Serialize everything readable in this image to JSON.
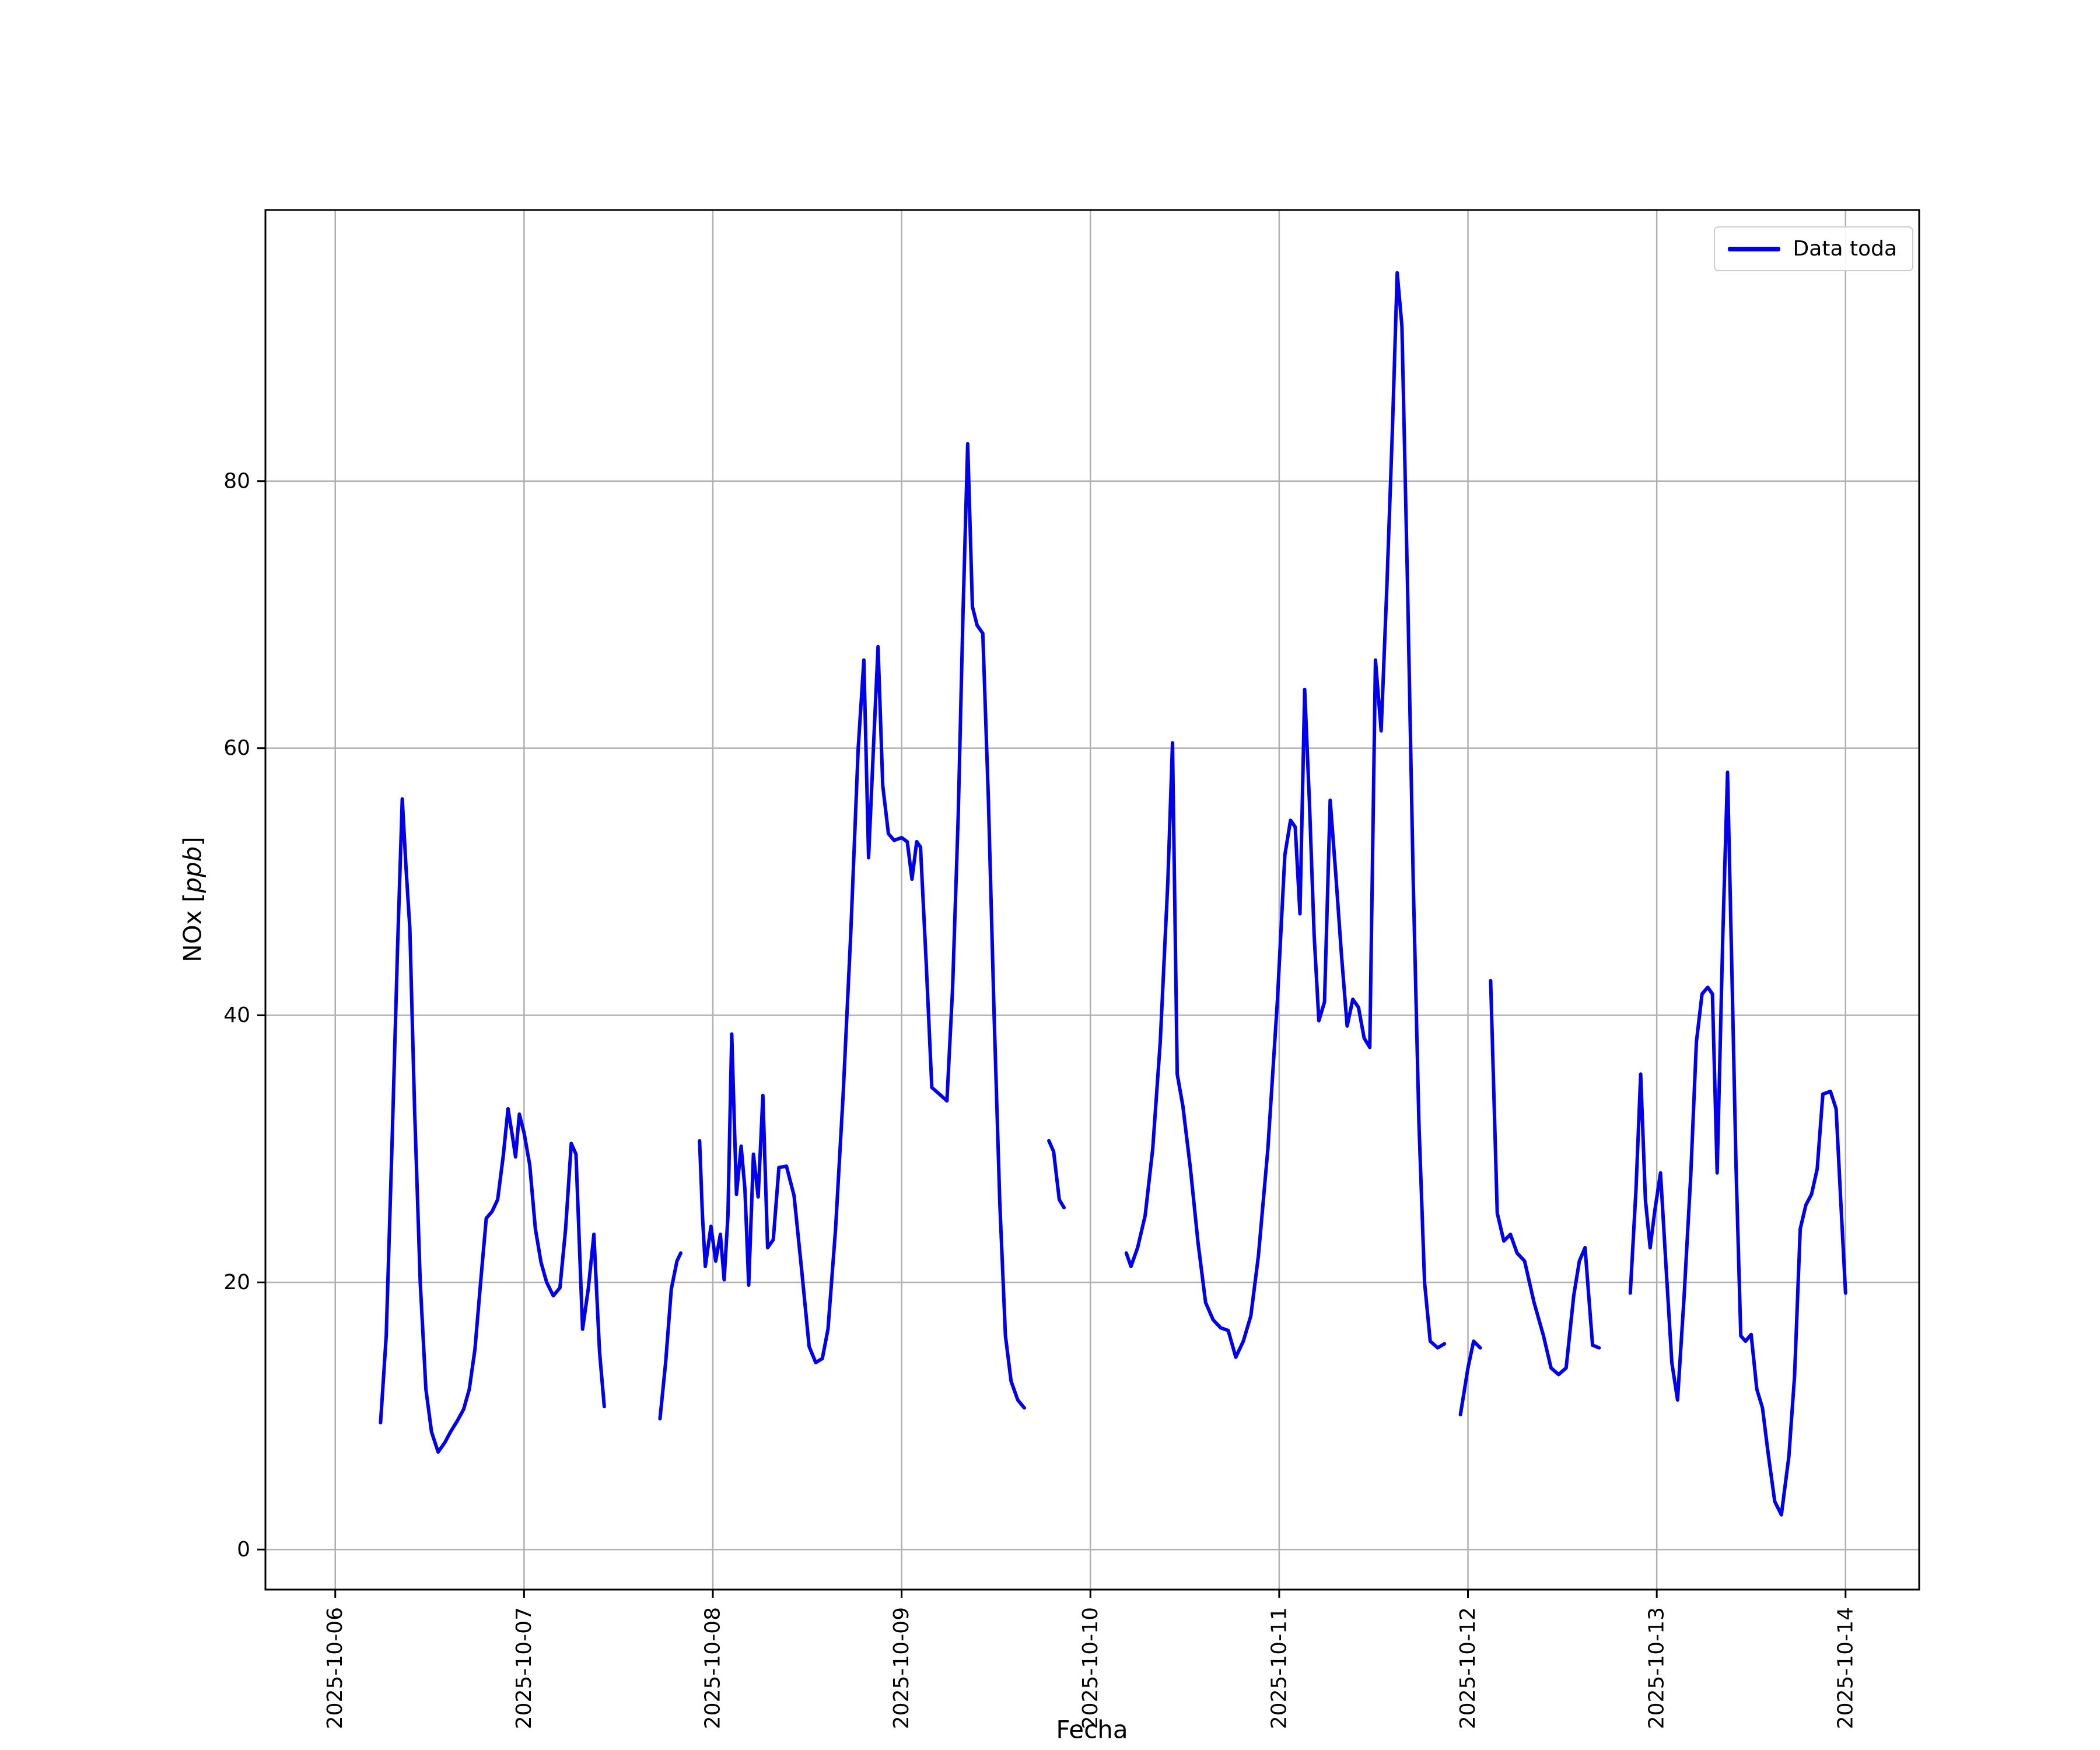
{
  "figure": {
    "background": "#ffffff"
  },
  "chart_data": {
    "type": "line",
    "title": "",
    "xlabel": "Fecha",
    "ylabel": "NOx [ppb]",
    "ylabel_parts": {
      "prefix": "NOx [",
      "italic": "ppb",
      "suffix": "]"
    },
    "legend": {
      "label": "Data toda",
      "position": "upper right"
    },
    "line_color": "#0000ee",
    "grid": true,
    "grid_color": "#b0b0b0",
    "x_unit": "days since 2025-10-06 00:00",
    "xlim": [
      -0.37,
      8.39
    ],
    "ylim": [
      -3,
      100.3
    ],
    "yticks": [
      0,
      20,
      40,
      60,
      80
    ],
    "xticks": [
      {
        "t": 0,
        "label": "2025-10-06"
      },
      {
        "t": 1,
        "label": "2025-10-07"
      },
      {
        "t": 2,
        "label": "2025-10-08"
      },
      {
        "t": 3,
        "label": "2025-10-09"
      },
      {
        "t": 4,
        "label": "2025-10-10"
      },
      {
        "t": 5,
        "label": "2025-10-11"
      },
      {
        "t": 6,
        "label": "2025-10-12"
      },
      {
        "t": 7,
        "label": "2025-10-13"
      },
      {
        "t": 8,
        "label": "2025-10-14"
      }
    ],
    "segments": [
      [
        [
          0.24,
          9.5
        ],
        [
          0.27,
          16
        ],
        [
          0.3,
          30
        ],
        [
          0.33,
          45
        ],
        [
          0.355,
          56.2
        ],
        [
          0.375,
          51
        ],
        [
          0.395,
          46.5
        ],
        [
          0.42,
          33
        ],
        [
          0.45,
          20
        ],
        [
          0.48,
          12
        ],
        [
          0.51,
          8.8
        ],
        [
          0.545,
          7.3
        ],
        [
          0.58,
          8
        ],
        [
          0.61,
          8.8
        ],
        [
          0.645,
          9.6
        ],
        [
          0.68,
          10.5
        ],
        [
          0.71,
          12
        ],
        [
          0.74,
          15
        ],
        [
          0.77,
          20
        ],
        [
          0.8,
          24.8
        ],
        [
          0.83,
          25.3
        ],
        [
          0.86,
          26.2
        ],
        [
          0.89,
          29.5
        ],
        [
          0.915,
          33
        ],
        [
          0.94,
          30.8
        ],
        [
          0.955,
          29.4
        ],
        [
          0.975,
          32.6
        ],
        [
          1.0,
          31.2
        ],
        [
          1.03,
          28.8
        ],
        [
          1.06,
          24
        ],
        [
          1.09,
          21.5
        ],
        [
          1.12,
          20
        ],
        [
          1.155,
          19
        ],
        [
          1.19,
          19.6
        ],
        [
          1.22,
          24
        ],
        [
          1.25,
          30.4
        ],
        [
          1.275,
          29.6
        ],
        [
          1.31,
          16.5
        ],
        [
          1.34,
          19.5
        ],
        [
          1.37,
          23.6
        ],
        [
          1.4,
          14.8
        ],
        [
          1.425,
          10.7
        ]
      ],
      [
        [
          1.72,
          9.8
        ],
        [
          1.75,
          14
        ],
        [
          1.78,
          19.5
        ],
        [
          1.81,
          21.6
        ],
        [
          1.83,
          22.2
        ]
      ],
      [
        [
          1.93,
          30.6
        ],
        [
          1.945,
          25
        ],
        [
          1.96,
          21.2
        ],
        [
          1.99,
          24.2
        ],
        [
          2.015,
          21.6
        ],
        [
          2.04,
          23.6
        ],
        [
          2.06,
          20.2
        ],
        [
          2.08,
          25
        ],
        [
          2.1,
          38.6
        ],
        [
          2.125,
          26.6
        ],
        [
          2.15,
          30.2
        ],
        [
          2.17,
          27
        ],
        [
          2.19,
          19.8
        ],
        [
          2.215,
          29.6
        ],
        [
          2.24,
          26.4
        ],
        [
          2.265,
          34
        ],
        [
          2.29,
          22.6
        ],
        [
          2.32,
          23.2
        ],
        [
          2.35,
          28.6
        ],
        [
          2.39,
          28.7
        ],
        [
          2.43,
          26.5
        ],
        [
          2.47,
          21
        ],
        [
          2.51,
          15.2
        ],
        [
          2.545,
          14
        ],
        [
          2.58,
          14.3
        ],
        [
          2.61,
          16.5
        ],
        [
          2.65,
          24
        ],
        [
          2.69,
          34
        ],
        [
          2.73,
          46
        ],
        [
          2.77,
          60
        ],
        [
          2.8,
          66.6
        ],
        [
          2.825,
          51.8
        ],
        [
          2.85,
          59.8
        ],
        [
          2.875,
          67.6
        ],
        [
          2.9,
          57.2
        ],
        [
          2.93,
          53.6
        ],
        [
          2.96,
          53.1
        ],
        [
          3.0,
          53.3
        ],
        [
          3.03,
          53
        ],
        [
          3.055,
          50.2
        ],
        [
          3.08,
          53
        ],
        [
          3.1,
          52.6
        ],
        [
          3.13,
          44
        ],
        [
          3.16,
          34.6
        ],
        [
          3.2,
          34.1
        ],
        [
          3.24,
          33.6
        ],
        [
          3.27,
          42
        ],
        [
          3.3,
          55
        ],
        [
          3.325,
          70
        ],
        [
          3.35,
          82.8
        ],
        [
          3.375,
          70.6
        ],
        [
          3.4,
          69.2
        ],
        [
          3.43,
          68.6
        ],
        [
          3.46,
          56
        ],
        [
          3.49,
          40
        ],
        [
          3.52,
          26
        ],
        [
          3.55,
          16
        ],
        [
          3.58,
          12.6
        ],
        [
          3.615,
          11.2
        ],
        [
          3.65,
          10.6
        ]
      ],
      [
        [
          3.78,
          30.6
        ],
        [
          3.805,
          29.8
        ],
        [
          3.835,
          26.2
        ],
        [
          3.86,
          25.6
        ]
      ],
      [
        [
          4.19,
          22.2
        ],
        [
          4.215,
          21.2
        ],
        [
          4.25,
          22.6
        ],
        [
          4.29,
          25
        ],
        [
          4.33,
          30
        ],
        [
          4.37,
          38
        ],
        [
          4.41,
          50
        ],
        [
          4.435,
          60.4
        ],
        [
          4.46,
          35.6
        ],
        [
          4.49,
          33.2
        ],
        [
          4.53,
          28.5
        ],
        [
          4.57,
          23
        ],
        [
          4.61,
          18.5
        ],
        [
          4.65,
          17.2
        ],
        [
          4.69,
          16.6
        ],
        [
          4.73,
          16.4
        ],
        [
          4.77,
          14.4
        ],
        [
          4.81,
          15.6
        ],
        [
          4.85,
          17.5
        ],
        [
          4.89,
          22
        ],
        [
          4.94,
          30
        ],
        [
          4.99,
          41
        ],
        [
          5.03,
          52
        ],
        [
          5.06,
          54.6
        ],
        [
          5.085,
          54.1
        ],
        [
          5.11,
          47.6
        ],
        [
          5.135,
          64.4
        ],
        [
          5.16,
          56
        ],
        [
          5.185,
          46
        ],
        [
          5.21,
          39.6
        ],
        [
          5.24,
          41
        ],
        [
          5.27,
          56.1
        ],
        [
          5.3,
          50.5
        ],
        [
          5.33,
          44.5
        ],
        [
          5.36,
          39.2
        ],
        [
          5.39,
          41.2
        ],
        [
          5.42,
          40.6
        ],
        [
          5.45,
          38.3
        ],
        [
          5.48,
          37.6
        ],
        [
          5.51,
          66.6
        ],
        [
          5.54,
          61.3
        ],
        [
          5.57,
          72
        ],
        [
          5.6,
          84
        ],
        [
          5.625,
          95.6
        ],
        [
          5.65,
          91.6
        ],
        [
          5.68,
          72
        ],
        [
          5.71,
          50
        ],
        [
          5.74,
          32
        ],
        [
          5.77,
          20
        ],
        [
          5.8,
          15.6
        ],
        [
          5.84,
          15.1
        ],
        [
          5.875,
          15.4
        ]
      ],
      [
        [
          5.96,
          10.1
        ],
        [
          6.0,
          13.6
        ],
        [
          6.03,
          15.6
        ],
        [
          6.065,
          15.1
        ]
      ],
      [
        [
          6.12,
          42.6
        ],
        [
          6.155,
          25.2
        ],
        [
          6.19,
          23.1
        ],
        [
          6.225,
          23.6
        ],
        [
          6.26,
          22.2
        ],
        [
          6.3,
          21.6
        ],
        [
          6.35,
          18.5
        ],
        [
          6.4,
          16
        ],
        [
          6.44,
          13.6
        ],
        [
          6.48,
          13.1
        ],
        [
          6.52,
          13.6
        ],
        [
          6.56,
          19
        ],
        [
          6.59,
          21.6
        ],
        [
          6.62,
          22.6
        ],
        [
          6.66,
          15.3
        ],
        [
          6.695,
          15.1
        ]
      ],
      [
        [
          6.86,
          19.2
        ],
        [
          6.89,
          27
        ],
        [
          6.915,
          35.6
        ],
        [
          6.94,
          26.2
        ],
        [
          6.965,
          22.6
        ],
        [
          6.99,
          25.4
        ],
        [
          7.02,
          28.2
        ],
        [
          7.05,
          21
        ],
        [
          7.08,
          14
        ],
        [
          7.11,
          11.2
        ],
        [
          7.145,
          19
        ],
        [
          7.18,
          28
        ],
        [
          7.21,
          38
        ],
        [
          7.24,
          41.6
        ],
        [
          7.27,
          42.1
        ],
        [
          7.295,
          41.6
        ],
        [
          7.32,
          28.2
        ],
        [
          7.35,
          46
        ],
        [
          7.375,
          58.2
        ],
        [
          7.4,
          42
        ],
        [
          7.42,
          28.6
        ],
        [
          7.445,
          16
        ],
        [
          7.47,
          15.6
        ],
        [
          7.5,
          16.1
        ],
        [
          7.53,
          12
        ],
        [
          7.56,
          10.6
        ],
        [
          7.59,
          7.2
        ],
        [
          7.625,
          3.6
        ],
        [
          7.66,
          2.6
        ],
        [
          7.7,
          7
        ],
        [
          7.73,
          13
        ],
        [
          7.76,
          24
        ],
        [
          7.79,
          25.8
        ],
        [
          7.82,
          26.6
        ],
        [
          7.85,
          28.5
        ],
        [
          7.88,
          34.1
        ],
        [
          7.92,
          34.3
        ],
        [
          7.95,
          33
        ],
        [
          7.975,
          26
        ],
        [
          8.0,
          19.2
        ]
      ]
    ]
  }
}
